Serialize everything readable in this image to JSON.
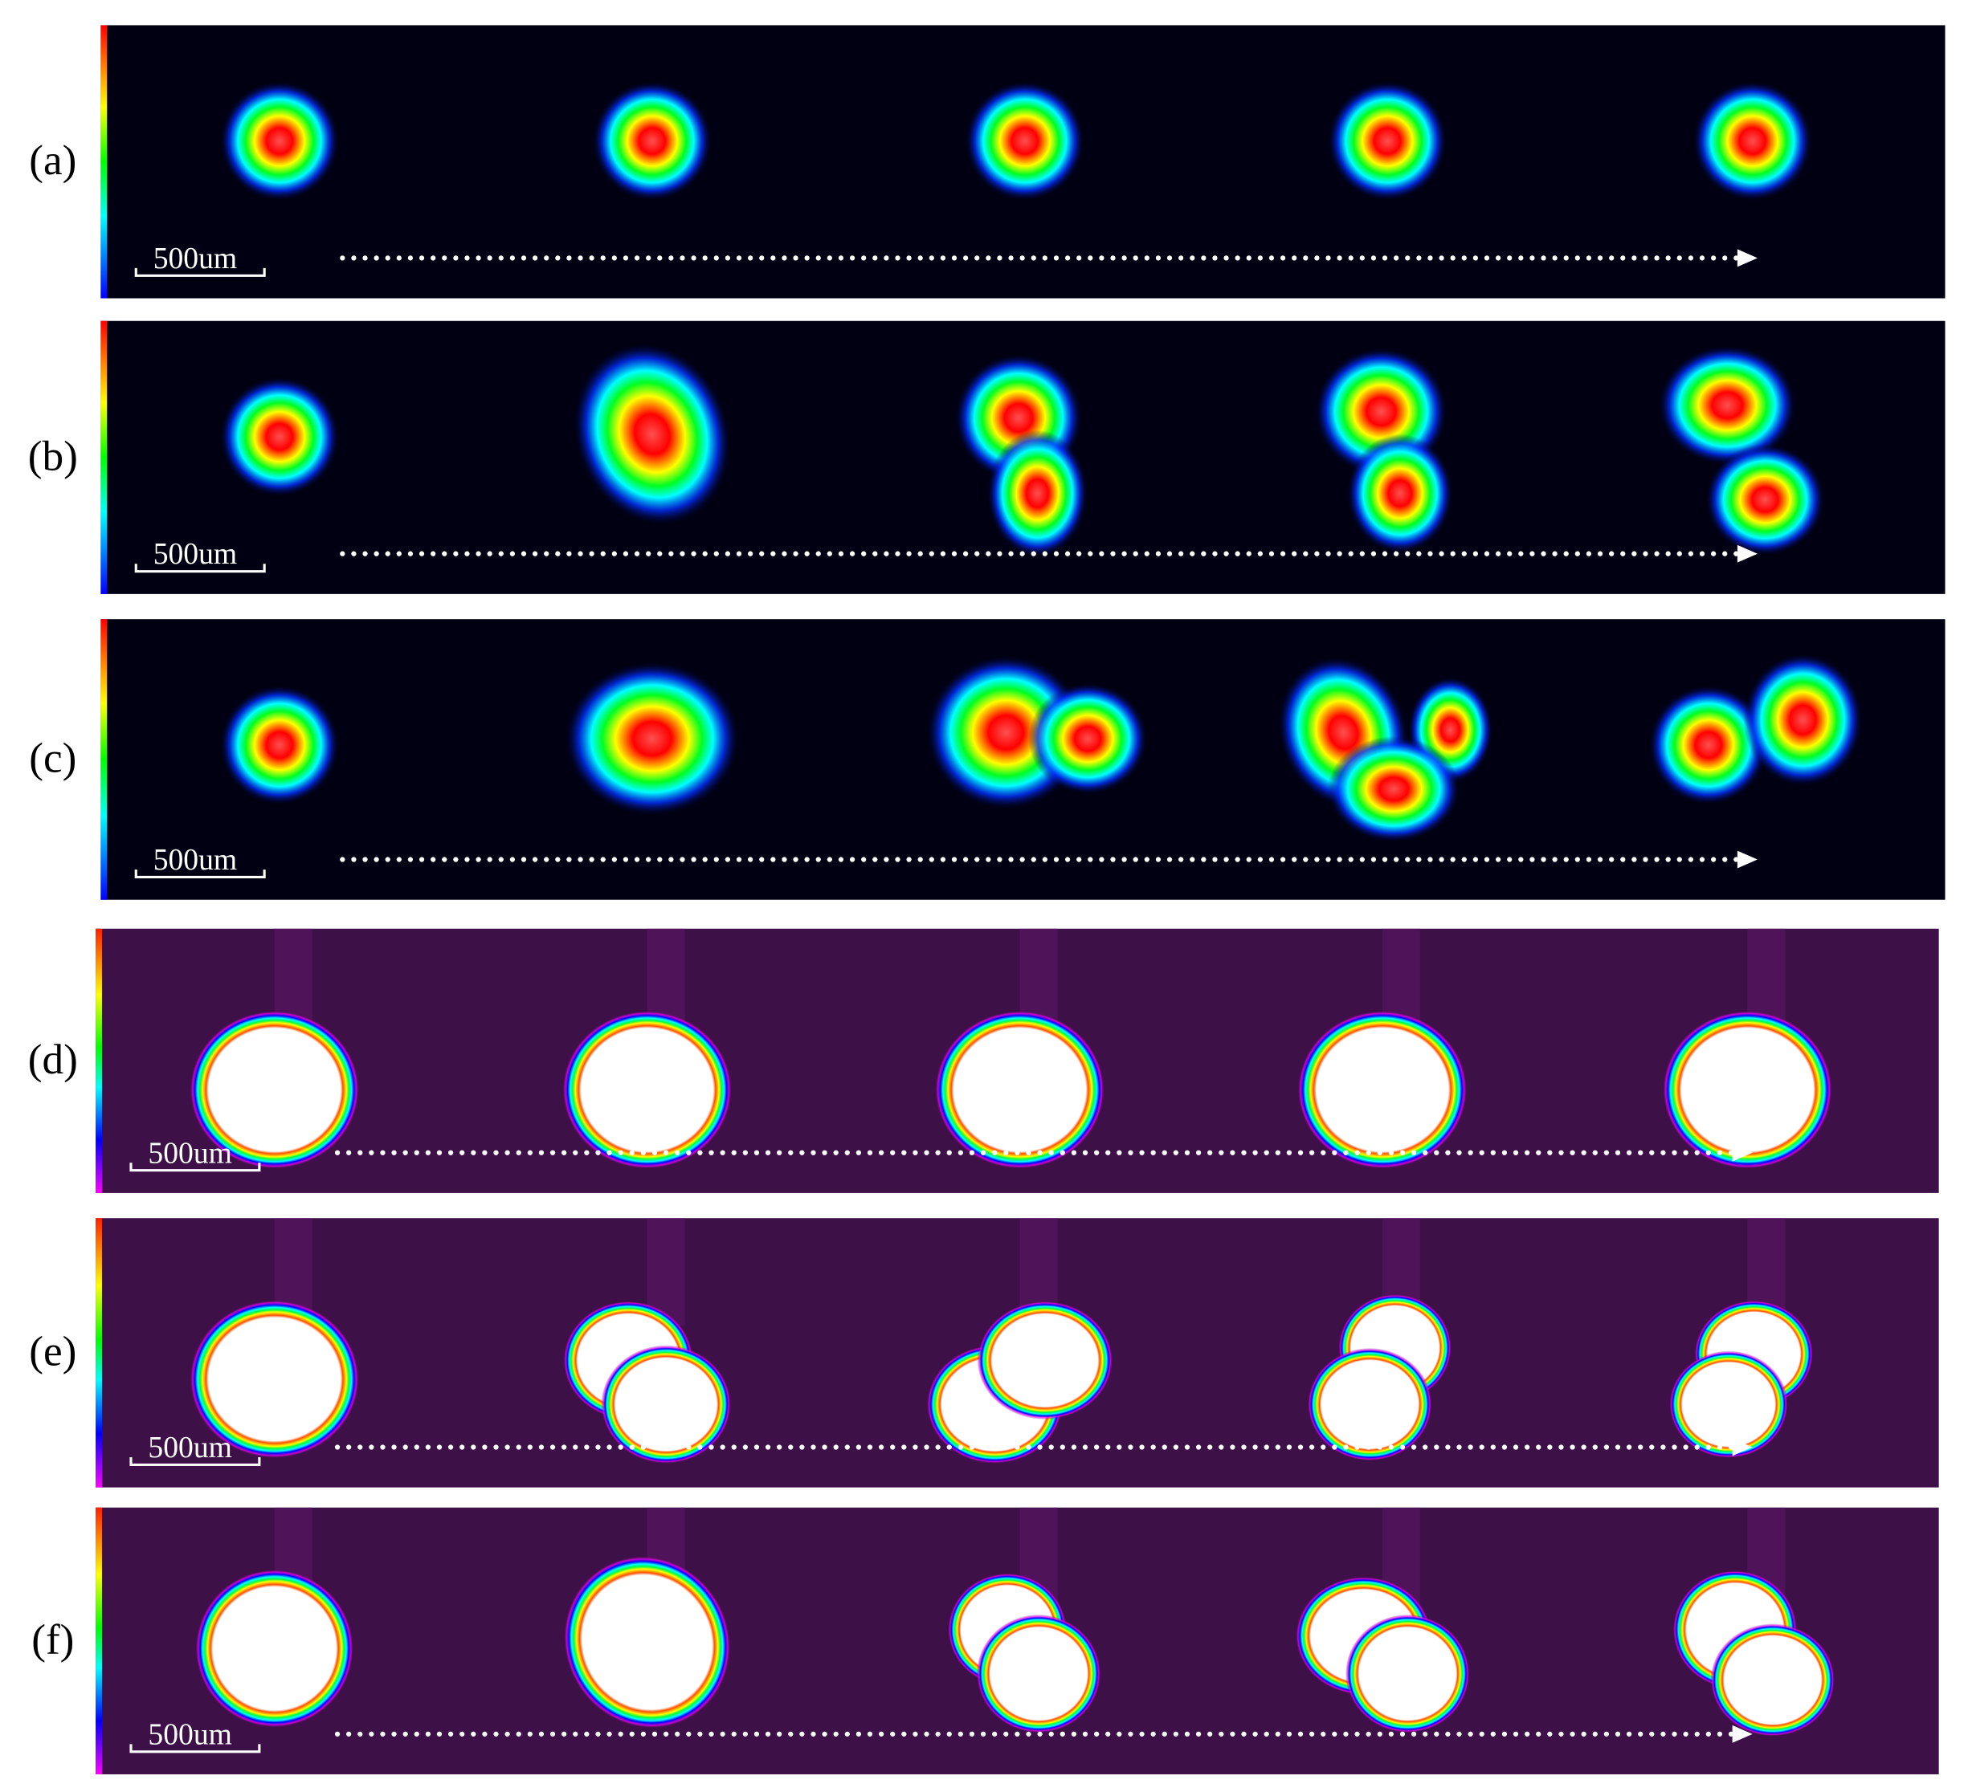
{
  "panels": [
    {
      "label": "(a)",
      "scale_bar": "500um"
    },
    {
      "label": "(b)",
      "scale_bar": "500um"
    },
    {
      "label": "(c)",
      "scale_bar": "500um"
    },
    {
      "label": "(d)",
      "scale_bar": "500um"
    },
    {
      "label": "(e)",
      "scale_bar": "500um"
    },
    {
      "label": "(f)",
      "scale_bar": "500um"
    }
  ]
}
